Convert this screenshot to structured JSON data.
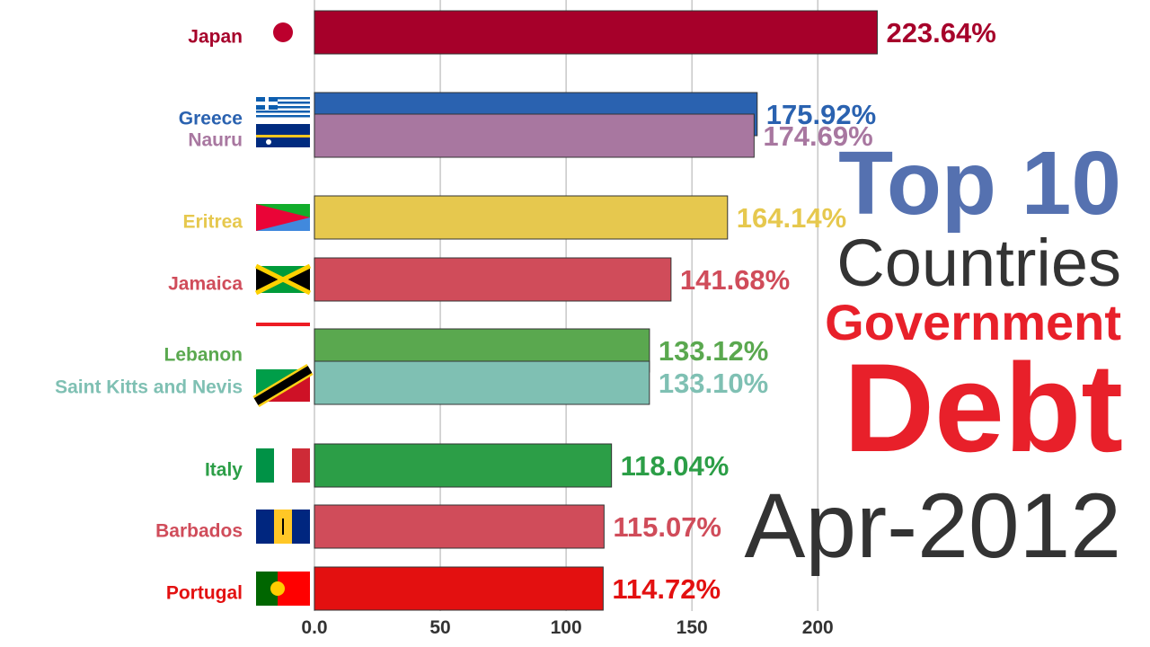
{
  "chart_data": {
    "type": "bar",
    "orientation": "horizontal",
    "title_lines": [
      "Top 10",
      "Countries",
      "Government",
      "Debt"
    ],
    "date": "Apr-2012",
    "categories": [
      "Japan",
      "Greece",
      "Nauru",
      "Eritrea",
      "Jamaica",
      "Lebanon",
      "Saint Kitts and Nevis",
      "Italy",
      "Barbados",
      "Portugal"
    ],
    "values": [
      223.64,
      175.92,
      174.69,
      164.14,
      141.68,
      133.12,
      133.1,
      118.04,
      115.07,
      114.72
    ],
    "value_labels": [
      "223.64%",
      "175.92%",
      "174.69%",
      "164.14%",
      "141.68%",
      "133.12%",
      "133.10%",
      "118.04%",
      "115.07%",
      "114.72%"
    ],
    "colors": [
      "#a6002a",
      "#2a62b0",
      "#a877a0",
      "#e6c84e",
      "#d04c5a",
      "#5aa84f",
      "#7fc0b3",
      "#2c9e47",
      "#d04c5a",
      "#e31010"
    ],
    "xlim": [
      0,
      332
    ],
    "xticks": [
      {
        "value": 0,
        "label": "0.0"
      },
      50,
      100,
      150,
      200
    ],
    "grid": true
  }
}
